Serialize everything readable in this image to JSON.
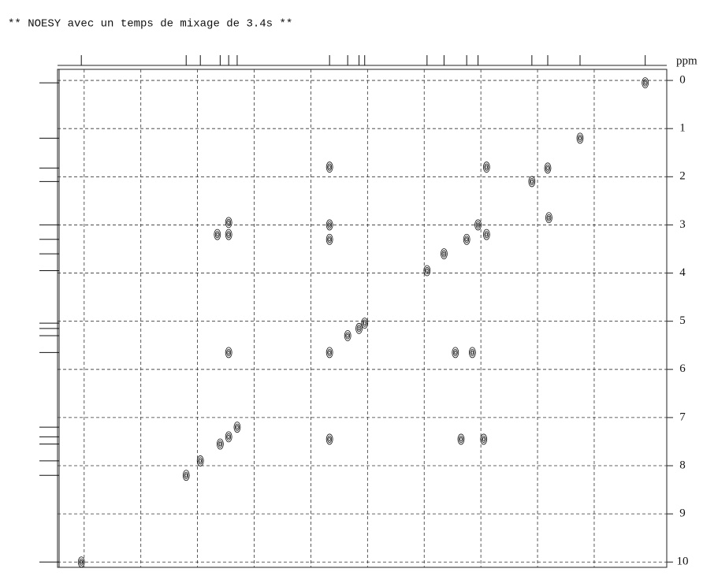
{
  "chart_data": {
    "type": "contour",
    "title": "** NOESY avec un temps de mixage de 3.4s **",
    "y_label": "ppm",
    "x": [
      0.05,
      1.2,
      1.77,
      2.05,
      1.75,
      3.0,
      2.85,
      3.2,
      3.6,
      3.9,
      5.0,
      5.1,
      5.3,
      5.62,
      7.4,
      7.25,
      7.55,
      7.9,
      8.15,
      10.0,
      5.62,
      2.85,
      5.62,
      5.62,
      7.4,
      7.4,
      7.6,
      7.4,
      3.4,
      3.1,
      5.62,
      3.3,
      2.9
    ],
    "values": [
      0.05,
      1.2,
      1.82,
      2.1,
      2.85,
      3.0,
      3.2,
      3.3,
      3.6,
      3.95,
      5.04,
      5.15,
      5.3,
      5.65,
      7.4,
      7.2,
      7.55,
      7.9,
      8.2,
      10.0,
      1.8,
      1.8,
      3.0,
      3.3,
      2.95,
      3.2,
      3.2,
      5.65,
      5.65,
      5.65,
      7.45,
      7.45,
      7.45
    ],
    "xlim": [
      10.42,
      -0.33
    ],
    "ylim": [
      -0.23,
      10.11
    ],
    "yticks": [
      0,
      1,
      2,
      3,
      4,
      5,
      6,
      7,
      8,
      9,
      10
    ],
    "xgrid": [
      9.95,
      8.95,
      7.95,
      6.95,
      5.95,
      4.95,
      3.95,
      2.95,
      1.95,
      0.95
    ],
    "grid": true,
    "color": "#111111"
  }
}
